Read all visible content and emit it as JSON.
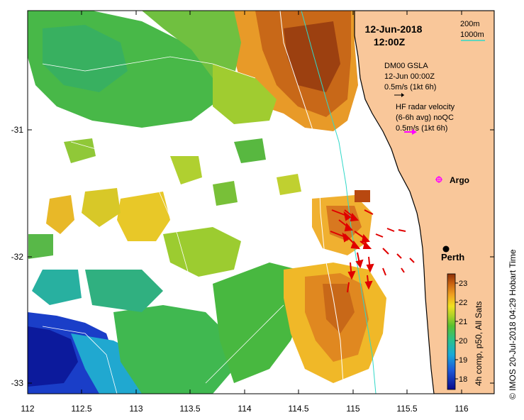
{
  "header": {
    "date": "12-Jun-2018",
    "time": "12:00Z"
  },
  "isobath_legend": {
    "shallow": "200m",
    "deep": "1000m",
    "shallow_color": "#ffffff",
    "deep_color": "#30d8c8"
  },
  "gsla": {
    "product": "DM00 GSLA",
    "date": "12-Jun 00:00Z",
    "scale": "0.5m/s (1kt 6h)",
    "arrow_color": "#000000"
  },
  "hf_radar": {
    "title": "HF radar velocity",
    "detail": "(6-6h avg) noQC",
    "scale": "0.5m/s (1kt 6h)",
    "arrow_color": "#ff00ff",
    "current_color": "#e00000"
  },
  "places": {
    "argo_label": "Argo",
    "argo_color": "#ff00ff",
    "perth_label": "Perth"
  },
  "colorbar": {
    "label": "4h comp, p50, All Sats",
    "ticks": [
      "23",
      "22",
      "21",
      "20",
      "19",
      "18"
    ],
    "min": 17.5,
    "max": 23.5
  },
  "axes": {
    "x_ticks": [
      "112",
      "112.5",
      "113",
      "113.5",
      "114",
      "114.5",
      "115",
      "115.5",
      "116"
    ],
    "y_ticks": [
      "-31",
      "-32",
      "-33"
    ],
    "xlim": [
      112,
      116.3
    ],
    "ylim": [
      -33.1,
      -30.0
    ]
  },
  "colors": {
    "land": "#f9c79a",
    "coast": "#000000"
  },
  "credit": "© IMOS 20-Jul-2018 04:29 Hobart Time"
}
